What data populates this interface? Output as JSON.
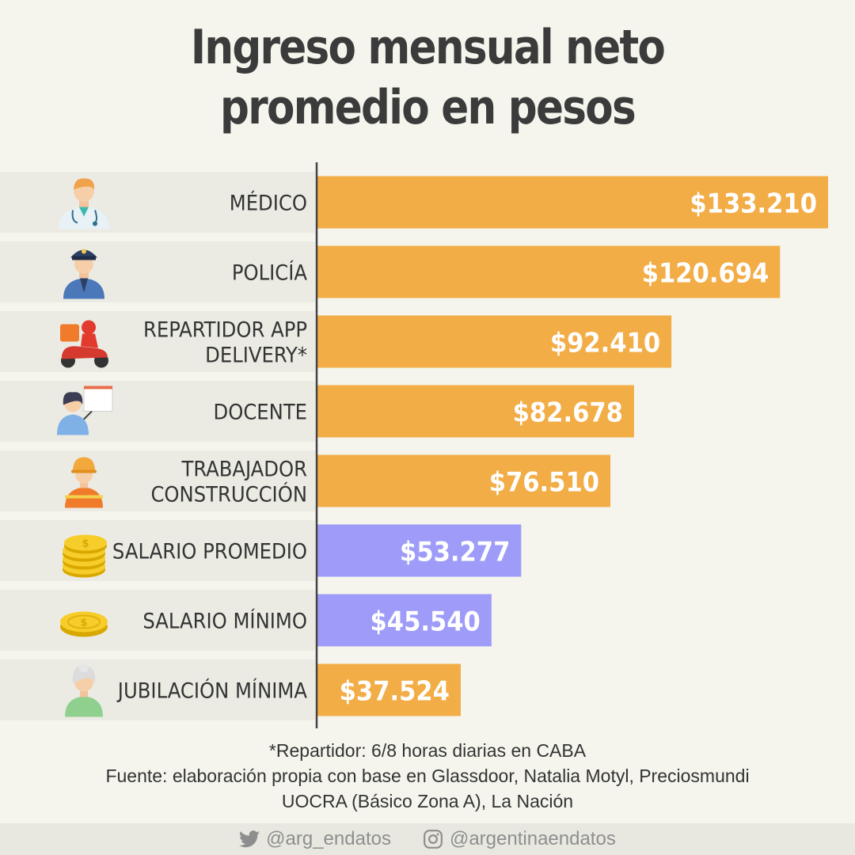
{
  "title_lines": [
    "Ingreso mensual neto",
    "promedio en pesos"
  ],
  "colors": {
    "bar_orange": "#f2ad47",
    "bar_purple": "#9e9cf8",
    "row_background": "#ebebe4",
    "axis": "#444444",
    "label_text": "#333333",
    "value_text": "#ffffff"
  },
  "chart_data": {
    "type": "bar",
    "orientation": "horizontal",
    "title": "Ingreso mensual neto promedio en pesos",
    "categories": [
      "MÉDICO",
      "POLICÍA",
      "REPARTIDOR APP DELIVERY*",
      "DOCENTE",
      "TRABAJADOR CONSTRUCCIÓN",
      "SALARIO PROMEDIO",
      "SALARIO MÍNIMO",
      "JUBILACIÓN MÍNIMA"
    ],
    "values": [
      133210,
      120694,
      92410,
      82678,
      76510,
      53277,
      45540,
      37524
    ],
    "value_labels": [
      "$133.210",
      "$120.694",
      "$92.410",
      "$82.678",
      "$76.510",
      "$53.277",
      "$45.540",
      "$37.524"
    ],
    "bar_colors": [
      "orange",
      "orange",
      "orange",
      "orange",
      "orange",
      "purple",
      "purple",
      "orange"
    ],
    "icons": [
      "doctor-icon",
      "police-icon",
      "delivery-rider-icon",
      "teacher-icon",
      "construction-worker-icon",
      "coin-stack-icon",
      "coins-icon",
      "elderly-person-icon"
    ],
    "xlim": [
      0,
      135000
    ],
    "grid": false,
    "legend": "none"
  },
  "footnote": {
    "line1": "*Repartidor: 6/8 horas diarias en CABA",
    "line2": "Fuente: elaboración propia con base en Glassdoor, Natalia Motyl, Preciosmundi",
    "line3": "UOCRA (Básico Zona A), La Nación"
  },
  "social": {
    "twitter_icon": "twitter-icon",
    "twitter_handle": "@arg_endatos",
    "instagram_icon": "instagram-icon",
    "instagram_handle": "@argentinaendatos"
  }
}
